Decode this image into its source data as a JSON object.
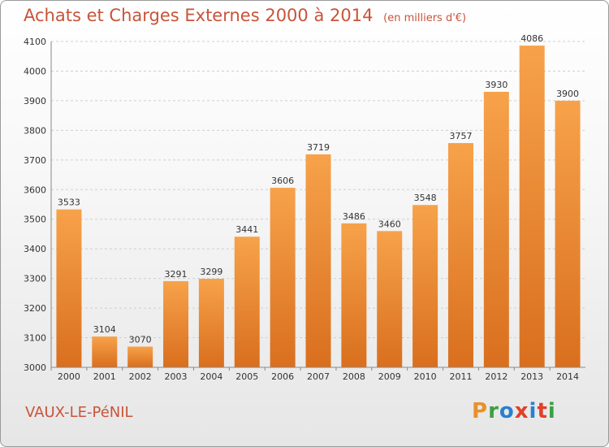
{
  "header": {
    "title": "Achats et Charges Externes 2000 à 2014",
    "subtitle": "(en milliers d'€)"
  },
  "footer": {
    "commune": "VAUX-LE-PéNIL",
    "logo_letters": [
      "P",
      "r",
      "o",
      "x",
      "i",
      "t",
      "i"
    ],
    "logo_colors": [
      "#e8912a",
      "#3aa040",
      "#2a7fd0",
      "#e0402a",
      "#2a7fd0",
      "#e0402a",
      "#3aa040"
    ]
  },
  "chart_data": {
    "type": "bar",
    "title": "Achats et Charges Externes 2000 à 2014",
    "subtitle": "(en milliers d'€)",
    "xlabel": "",
    "ylabel": "",
    "categories": [
      "2000",
      "2001",
      "2002",
      "2003",
      "2004",
      "2005",
      "2006",
      "2007",
      "2008",
      "2009",
      "2010",
      "2011",
      "2012",
      "2013",
      "2014"
    ],
    "values": [
      3533,
      3104,
      3070,
      3291,
      3299,
      3441,
      3606,
      3719,
      3486,
      3460,
      3548,
      3757,
      3930,
      4086,
      3900
    ],
    "ylim": [
      3000,
      4100
    ],
    "yticks": [
      3000,
      3100,
      3200,
      3300,
      3400,
      3500,
      3600,
      3700,
      3800,
      3900,
      4000,
      4100
    ],
    "grid": true,
    "bar_color_top": "#f7a24a",
    "bar_color_bottom": "#d96f1e"
  }
}
